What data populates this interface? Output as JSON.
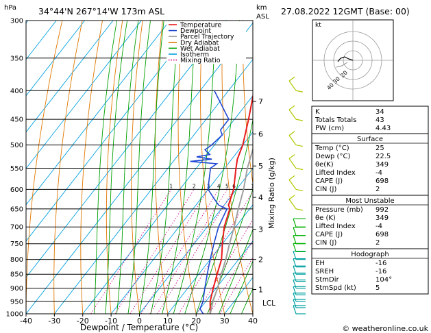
{
  "header": {
    "location": "34°44'N  267°14'W  173m  ASL",
    "date": "27.08.2022  12GMT  (Base: 00)"
  },
  "axes": {
    "pressure_unit": "hPa",
    "alt_unit_top": "km",
    "alt_unit_bottom": "ASL",
    "xlabel": "Dewpoint / Temperature (°C)",
    "mixing_ratio_label": "Mixing Ratio (g/kg)",
    "lcl_label": "LCL",
    "credit": "© weatheronline.co.uk"
  },
  "legend": {
    "items": [
      {
        "label": "Temperature",
        "color": "#e8191a"
      },
      {
        "label": "Dewpoint",
        "color": "#1e46d2"
      },
      {
        "label": "Parcel Trajectory",
        "color": "#a0a0a0"
      },
      {
        "label": "Dry Adiabat",
        "color": "#e07800"
      },
      {
        "label": "Wet Adiabat",
        "color": "#00a000"
      },
      {
        "label": "Isotherm",
        "color": "#00a0e0"
      },
      {
        "label": "Mixing Ratio",
        "color": "#d0008a"
      }
    ]
  },
  "chart_data": {
    "type": "line",
    "title": "",
    "xlim": [
      -40,
      40
    ],
    "ylim": [
      1000,
      300
    ],
    "x_ticks": [
      -40,
      -30,
      -20,
      -10,
      0,
      10,
      20,
      30,
      40
    ],
    "pressure_levels": [
      300,
      350,
      400,
      450,
      500,
      550,
      600,
      650,
      700,
      750,
      800,
      850,
      900,
      950,
      1000
    ],
    "km_ticks": [
      {
        "km": "1",
        "p": 905
      },
      {
        "km": "2",
        "p": 800
      },
      {
        "km": "3",
        "p": 707
      },
      {
        "km": "4",
        "p": 620
      },
      {
        "km": "5",
        "p": 545
      },
      {
        "km": "6",
        "p": 478
      },
      {
        "km": "7",
        "p": 418
      }
    ],
    "mixing_ratio_labels": [
      "1",
      "2",
      "3",
      "4",
      "5",
      "6",
      "10",
      "15",
      "20",
      "25"
    ],
    "series": [
      {
        "name": "Temperature",
        "p": [
          1000,
          950,
          900,
          850,
          800,
          750,
          700,
          650,
          640,
          600,
          550,
          530,
          500,
          450,
          400
        ],
        "t": [
          25,
          21.5,
          19,
          16.5,
          14,
          10,
          6,
          3,
          1.5,
          -1,
          -6,
          -8,
          -10,
          -15,
          -21
        ]
      },
      {
        "name": "Dewpoint",
        "p": [
          1000,
          980,
          950,
          900,
          850,
          800,
          750,
          700,
          650,
          640,
          620,
          600,
          580,
          550,
          540,
          535,
          530,
          525,
          520,
          510,
          500,
          480,
          470,
          450,
          400
        ],
        "t": [
          22.5,
          20,
          19,
          16,
          13,
          10,
          7,
          4,
          2,
          -2,
          -6,
          -10,
          -12,
          -15,
          -14,
          -24,
          -17,
          -23,
          -19,
          -22,
          -21,
          -20,
          -22,
          -22,
          -35
        ]
      },
      {
        "name": "Parcel Trajectory",
        "p": [
          1000,
          950,
          900,
          850,
          800,
          750,
          700,
          650,
          600,
          550,
          500,
          450,
          400,
          350
        ],
        "t": [
          25,
          22.5,
          20.5,
          18,
          15.5,
          12.5,
          9.5,
          6,
          2.5,
          -2,
          -6,
          -12,
          -18,
          -26
        ]
      }
    ]
  },
  "indices": {
    "rows": [
      {
        "label": "K",
        "value": "34"
      },
      {
        "label": "Totals Totals",
        "value": "43"
      },
      {
        "label": "PW (cm)",
        "value": "4.43"
      }
    ]
  },
  "surface": {
    "title": "Surface",
    "rows": [
      {
        "label": "Temp (°C)",
        "value": "25"
      },
      {
        "label": "Dewp (°C)",
        "value": "22.5"
      },
      {
        "label": "θe(K)",
        "value": "349"
      },
      {
        "label": "Lifted Index",
        "value": "-4"
      },
      {
        "label": "CAPE (J)",
        "value": "698"
      },
      {
        "label": "CIN (J)",
        "value": "2"
      }
    ]
  },
  "most_unstable": {
    "title": "Most Unstable",
    "rows": [
      {
        "label": "Pressure (mb)",
        "value": "992"
      },
      {
        "label": "θe (K)",
        "value": "349"
      },
      {
        "label": "Lifted Index",
        "value": "-4"
      },
      {
        "label": "CAPE (J)",
        "value": "698"
      },
      {
        "label": "CIN (J)",
        "value": "2"
      }
    ]
  },
  "hodograph": {
    "title": "Hodograph",
    "unit_label": "kt",
    "ring_labels": [
      "20",
      "30",
      "40"
    ],
    "rows": [
      {
        "label": "EH",
        "value": "-16"
      },
      {
        "label": "SREH",
        "value": "-16"
      },
      {
        "label": "StmDir",
        "value": "104°"
      },
      {
        "label": "StmSpd (kt)",
        "value": "5"
      }
    ]
  }
}
